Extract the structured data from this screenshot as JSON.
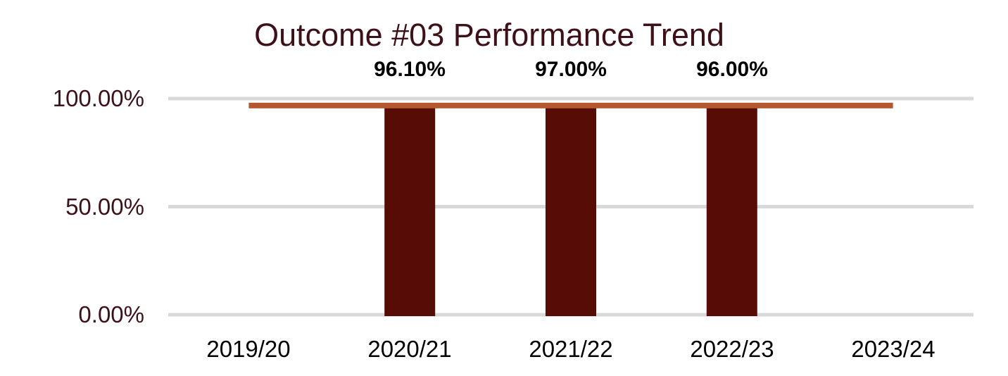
{
  "chart_data": {
    "type": "bar",
    "title": "Outcome #03 Performance Trend",
    "categories": [
      "2019/20",
      "2020/21",
      "2021/22",
      "2022/23",
      "2023/24"
    ],
    "series": [
      {
        "name": "bars",
        "type": "bar",
        "values": [
          null,
          96.1,
          97.0,
          96.0,
          null
        ],
        "color": "#570D06"
      }
    ],
    "overlay_line": {
      "type": "line",
      "color": "#B5572F",
      "approx_value": 96.8,
      "from_category": "2019/20",
      "to_category": "2023/24",
      "thickness_px": 8
    },
    "data_labels": [
      "96.10%",
      "97.00%",
      "96.00%"
    ],
    "xlabel": "",
    "ylabel": "",
    "ylim": [
      0,
      100
    ],
    "yticks": [
      {
        "label": "0.00%",
        "value": 0
      },
      {
        "label": "50.00%",
        "value": 50
      },
      {
        "label": "100.00%",
        "value": 100
      }
    ],
    "grid": true,
    "legend": "none",
    "colors": {
      "background": "#FFFFFF",
      "gridline": "#D9D9D9",
      "title_text": "#3D1117",
      "y_tick_text": "#3D1117",
      "x_tick_text": "#000000",
      "data_label_text": "#000000"
    }
  }
}
